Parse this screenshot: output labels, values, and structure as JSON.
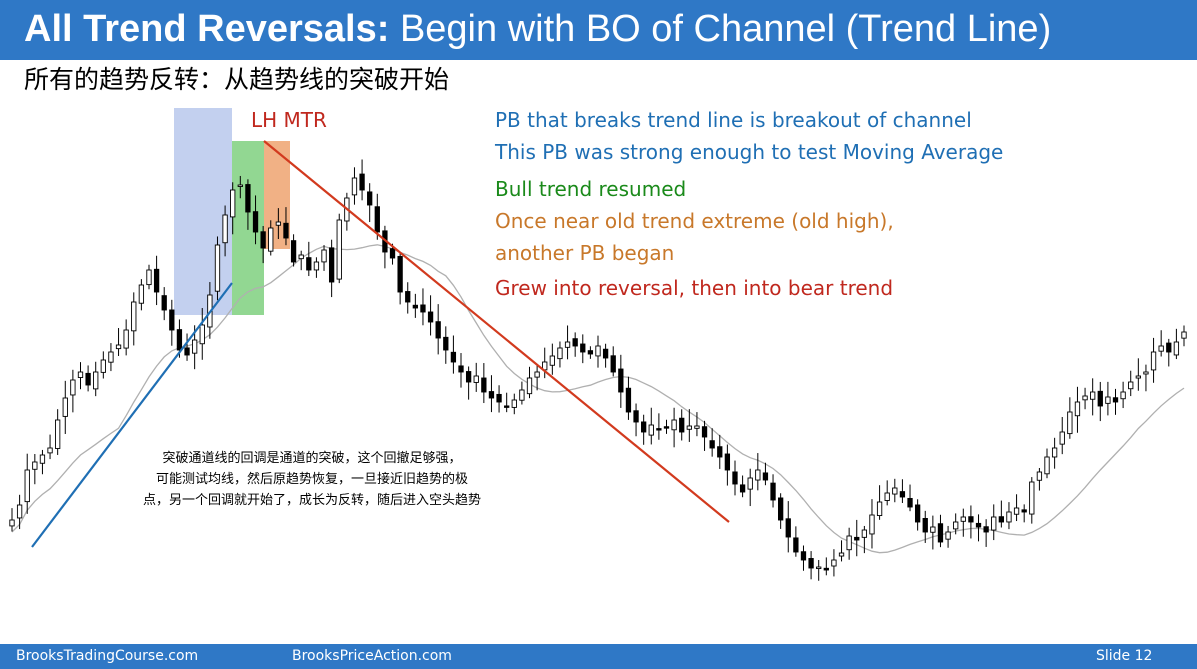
{
  "title": {
    "bold": "All Trend Reversals:",
    "rest": " Begin with BO of Channel (Trend Line)"
  },
  "subtitle": "所有的趋势反转：从趋势线的突破开始",
  "annotations": {
    "lh_mtr": "LH MTR",
    "line1": "PB that breaks trend line is breakout of channel",
    "line2": "This PB was strong enough to test Moving Average",
    "line3": "Bull trend resumed",
    "line4": "Once near old trend extreme (old high),",
    "line5": "another PB began",
    "line6": "Grew into reversal, then into bear trend"
  },
  "cn_note": {
    "l1": "突破通道线的回调是通道的突破，这个回撤足够强，",
    "l2": "可能测试均线，然后原趋势恢复，一旦接近旧趋势的极",
    "l3": "点，另一个回调就开始了，成长为反转，随后进入空头趋势"
  },
  "footer": {
    "left": "BrooksTradingCourse.com",
    "center": "BrooksPriceAction.com",
    "slide": "Slide  12"
  },
  "colors": {
    "title_bg": "#2f78c6",
    "blue_text": "#1f6fb4",
    "green_text": "#1a8a1a",
    "orange_text": "#c8782a",
    "red_text": "#c0281e",
    "trend_line_blue": "#1f6fb4",
    "trend_line_red": "#d23a1e",
    "zone_blue": "#b9c8ec",
    "zone_green": "#7fd07f",
    "zone_orange": "#f0a878",
    "candle": "#000000",
    "moving_average": "#b0b0b0"
  },
  "chart_data": {
    "type": "candlestick",
    "title": "",
    "xlabel": "",
    "ylabel": "",
    "grid": false,
    "series": [
      {
        "name": "",
        "values": [
          520,
          505,
          470,
          462,
          455,
          448,
          420,
          398,
          380,
          372,
          385,
          372,
          360,
          352,
          345,
          330,
          302,
          285,
          270,
          292,
          310,
          330,
          350,
          355,
          340,
          325,
          295,
          245,
          215,
          190,
          185,
          212,
          232,
          248,
          228,
          222,
          238,
          262,
          255,
          270,
          262,
          250,
          282,
          220,
          198,
          178,
          190,
          205,
          232,
          252,
          258,
          292,
          302,
          308,
          312,
          322,
          338,
          350,
          362,
          372,
          382,
          376,
          392,
          398,
          402,
          406,
          400,
          390,
          378,
          372,
          362,
          356,
          348,
          342,
          346,
          352,
          354,
          346,
          358,
          372,
          392,
          412,
          422,
          432,
          425,
          430,
          428,
          420,
          432,
          426,
          426,
          437,
          448,
          457,
          470,
          484,
          492,
          478,
          470,
          480,
          500,
          520,
          537,
          552,
          560,
          568,
          567,
          570,
          560,
          553,
          536,
          540,
          530,
          515,
          502,
          493,
          488,
          497,
          507,
          522,
          532,
          527,
          542,
          532,
          522,
          517,
          522,
          527,
          532,
          517,
          522,
          512,
          508,
          512,
          482,
          472,
          457,
          448,
          432,
          412,
          402,
          396,
          392,
          406,
          397,
          402,
          392,
          382,
          376,
          372,
          352,
          346,
          352,
          342,
          332
        ]
      }
    ]
  }
}
